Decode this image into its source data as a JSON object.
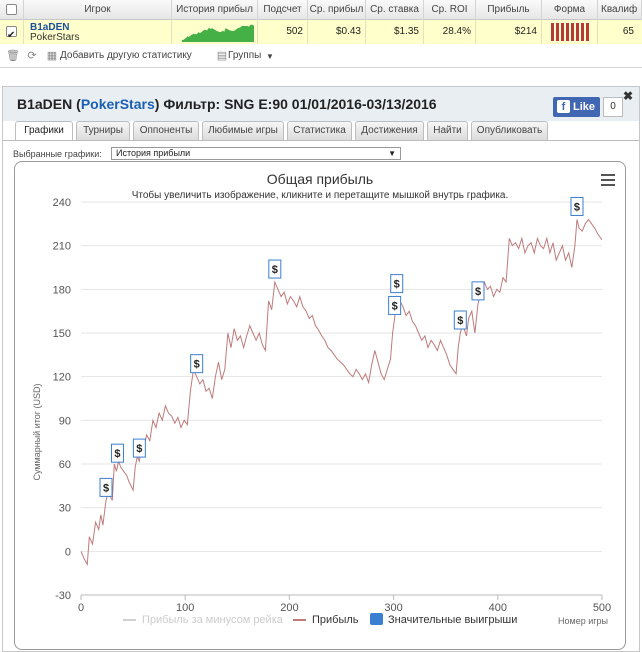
{
  "table": {
    "headers": {
      "player": "Игрок",
      "history": "История прибыл",
      "count": "Подсчет",
      "avg_profit": "Ср. прибыл",
      "avg_stake": "Ср. ставка",
      "avg_roi": "Ср. ROI",
      "profit": "Прибыль",
      "form": "Форма",
      "qualif": "Квалиф"
    },
    "row": {
      "player_name": "B1aDEN",
      "player_site": "PokerStars",
      "count": "502",
      "avg_profit": "$0.43",
      "avg_stake": "$1.35",
      "avg_roi": "28.4%",
      "profit": "$214",
      "qualif": "65",
      "checked": true
    }
  },
  "toolbar": {
    "add_stat": "Добавить другую статистику",
    "groups": "Группы"
  },
  "panel": {
    "name": "B1aDEN",
    "site": "PokerStars",
    "filter": "Фильтр: SNG E:90 01/01/2016-03/13/2016",
    "fb_like": "Like",
    "fb_count": "0",
    "tabs": [
      "Графики",
      "Турниры",
      "Оппоненты",
      "Любимые игры",
      "Статистика",
      "Достижения",
      "Найти",
      "Опубликовать"
    ],
    "active_tab": 0,
    "select_label": "Выбранные графики:",
    "select_value": "История прибыли"
  },
  "colors": {
    "profit_line": "#c07a7a",
    "rake_line": "#d0d0d0",
    "marker_border": "#3a7fd0",
    "legend_marker": "#3a7fd0",
    "sparkline": "#45b045",
    "form_bar": "#b53a3a"
  },
  "chart_data": {
    "type": "line",
    "title": "Общая прибыль",
    "subtitle": "Чтобы увеличить изображение, кликните и перетащите мышкой внутрь графика.",
    "xlabel": "Номер игры",
    "ylabel": "Суммарный итог (USD)",
    "xlim": [
      0,
      500
    ],
    "ylim": [
      -30,
      240
    ],
    "xticks": [
      0,
      100,
      200,
      300,
      400,
      500
    ],
    "yticks": [
      -30,
      0,
      30,
      60,
      90,
      120,
      150,
      180,
      210,
      240
    ],
    "series": [
      {
        "name": "Прибыль",
        "points": [
          [
            0,
            0
          ],
          [
            3,
            -5
          ],
          [
            6,
            -9
          ],
          [
            8,
            10
          ],
          [
            11,
            5
          ],
          [
            14,
            20
          ],
          [
            17,
            15
          ],
          [
            19,
            25
          ],
          [
            21,
            18
          ],
          [
            24,
            35
          ],
          [
            26,
            40
          ],
          [
            28,
            38
          ],
          [
            30,
            35
          ],
          [
            32,
            60
          ],
          [
            34,
            55
          ],
          [
            36,
            62
          ],
          [
            38,
            58
          ],
          [
            41,
            55
          ],
          [
            44,
            52
          ],
          [
            46,
            48
          ],
          [
            48,
            45
          ],
          [
            50,
            42
          ],
          [
            52,
            58
          ],
          [
            54,
            65
          ],
          [
            56,
            62
          ],
          [
            58,
            75
          ],
          [
            60,
            70
          ],
          [
            63,
            80
          ],
          [
            66,
            76
          ],
          [
            69,
            90
          ],
          [
            72,
            85
          ],
          [
            75,
            95
          ],
          [
            78,
            90
          ],
          [
            81,
            100
          ],
          [
            84,
            95
          ],
          [
            87,
            93
          ],
          [
            90,
            88
          ],
          [
            93,
            92
          ],
          [
            96,
            85
          ],
          [
            99,
            90
          ],
          [
            102,
            87
          ],
          [
            105,
            110
          ],
          [
            108,
            125
          ],
          [
            111,
            120
          ],
          [
            114,
            115
          ],
          [
            117,
            118
          ],
          [
            120,
            110
          ],
          [
            123,
            112
          ],
          [
            126,
            105
          ],
          [
            129,
            120
          ],
          [
            132,
            130
          ],
          [
            135,
            118
          ],
          [
            138,
            125
          ],
          [
            141,
            150
          ],
          [
            144,
            140
          ],
          [
            147,
            153
          ],
          [
            150,
            145
          ],
          [
            153,
            148
          ],
          [
            156,
            140
          ],
          [
            159,
            148
          ],
          [
            162,
            155
          ],
          [
            165,
            150
          ],
          [
            168,
            145
          ],
          [
            171,
            150
          ],
          [
            174,
            142
          ],
          [
            177,
            138
          ],
          [
            180,
            172
          ],
          [
            183,
            166
          ],
          [
            186,
            185
          ],
          [
            189,
            180
          ],
          [
            192,
            175
          ],
          [
            195,
            178
          ],
          [
            198,
            170
          ],
          [
            201,
            175
          ],
          [
            204,
            172
          ],
          [
            207,
            168
          ],
          [
            210,
            175
          ],
          [
            213,
            168
          ],
          [
            216,
            165
          ],
          [
            219,
            160
          ],
          [
            222,
            162
          ],
          [
            225,
            155
          ],
          [
            228,
            152
          ],
          [
            231,
            148
          ],
          [
            234,
            145
          ],
          [
            237,
            140
          ],
          [
            240,
            138
          ],
          [
            243,
            135
          ],
          [
            246,
            132
          ],
          [
            249,
            130
          ],
          [
            252,
            128
          ],
          [
            255,
            125
          ],
          [
            258,
            122
          ],
          [
            261,
            120
          ],
          [
            264,
            125
          ],
          [
            267,
            122
          ],
          [
            270,
            118
          ],
          [
            273,
            122
          ],
          [
            276,
            116
          ],
          [
            279,
            128
          ],
          [
            282,
            138
          ],
          [
            285,
            130
          ],
          [
            288,
            122
          ],
          [
            291,
            118
          ],
          [
            294,
            125
          ],
          [
            297,
            132
          ],
          [
            299,
            150
          ],
          [
            301,
            160
          ],
          [
            303,
            175
          ],
          [
            306,
            172
          ],
          [
            309,
            168
          ],
          [
            312,
            162
          ],
          [
            315,
            165
          ],
          [
            318,
            158
          ],
          [
            321,
            155
          ],
          [
            324,
            150
          ],
          [
            327,
            145
          ],
          [
            330,
            148
          ],
          [
            333,
            140
          ],
          [
            336,
            145
          ],
          [
            339,
            142
          ],
          [
            342,
            138
          ],
          [
            345,
            145
          ],
          [
            348,
            140
          ],
          [
            351,
            135
          ],
          [
            354,
            128
          ],
          [
            357,
            125
          ],
          [
            360,
            122
          ],
          [
            362,
            140
          ],
          [
            364,
            150
          ],
          [
            366,
            155
          ],
          [
            368,
            152
          ],
          [
            370,
            148
          ],
          [
            372,
            160
          ],
          [
            375,
            165
          ],
          [
            378,
            150
          ],
          [
            381,
            170
          ],
          [
            384,
            178
          ],
          [
            387,
            185
          ],
          [
            390,
            180
          ],
          [
            393,
            182
          ],
          [
            396,
            175
          ],
          [
            399,
            180
          ],
          [
            402,
            178
          ],
          [
            405,
            188
          ],
          [
            408,
            185
          ],
          [
            411,
            215
          ],
          [
            414,
            210
          ],
          [
            417,
            212
          ],
          [
            420,
            208
          ],
          [
            423,
            215
          ],
          [
            426,
            205
          ],
          [
            429,
            210
          ],
          [
            432,
            212
          ],
          [
            435,
            205
          ],
          [
            438,
            215
          ],
          [
            441,
            210
          ],
          [
            444,
            208
          ],
          [
            447,
            215
          ],
          [
            450,
            205
          ],
          [
            453,
            212
          ],
          [
            456,
            200
          ],
          [
            459,
            205
          ],
          [
            462,
            210
          ],
          [
            465,
            200
          ],
          [
            468,
            205
          ],
          [
            471,
            195
          ],
          [
            474,
            210
          ],
          [
            476,
            228
          ],
          [
            478,
            222
          ],
          [
            481,
            220
          ],
          [
            484,
            225
          ],
          [
            487,
            228
          ],
          [
            490,
            225
          ],
          [
            493,
            222
          ],
          [
            496,
            218
          ],
          [
            500,
            214
          ]
        ]
      }
    ],
    "big_wins_x": [
      24,
      35,
      56,
      111,
      186,
      301,
      303,
      364,
      381,
      476
    ],
    "legend": [
      "Прибыль за минусом рейка",
      "Прибыль",
      "Значительные выигрыши"
    ],
    "legend_position": "bottom",
    "marker_label": "$"
  }
}
